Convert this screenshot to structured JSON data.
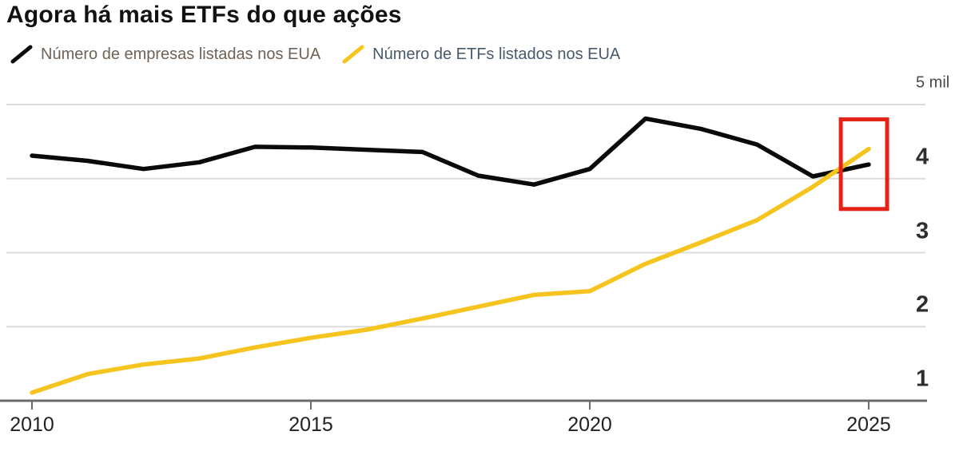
{
  "title": "Agora há mais ETFs do que ações",
  "legend": {
    "items": [
      {
        "label": "Número de empresas listadas nos EUA",
        "line_color": "#0a0a0a",
        "text_color": "#6f6257"
      },
      {
        "label": "Número de ETFs listados nos EUA",
        "line_color": "#f5c41e",
        "text_color": "#49596b"
      }
    ]
  },
  "y_axis": {
    "unit_label": "5 mil",
    "ticks": [
      {
        "label": "5 mil",
        "value": 5,
        "style": "unit"
      },
      {
        "label": "4",
        "value": 4,
        "style": "number"
      },
      {
        "label": "3",
        "value": 3,
        "style": "number"
      },
      {
        "label": "2",
        "value": 2,
        "style": "number"
      },
      {
        "label": "1",
        "value": 1,
        "style": "number"
      }
    ]
  },
  "x_axis": {
    "ticks": [
      {
        "label": "2010",
        "value": 2010
      },
      {
        "label": "2015",
        "value": 2015
      },
      {
        "label": "2020",
        "value": 2020
      },
      {
        "label": "2025",
        "value": 2025
      }
    ]
  },
  "chart_data": {
    "type": "line",
    "title": "Agora há mais ETFs do que ações",
    "xlabel": "",
    "ylabel": "mil",
    "xlim": [
      2010,
      2025
    ],
    "ylim": [
      1,
      5
    ],
    "grid": true,
    "legend_position": "top-left",
    "x": [
      2010,
      2011,
      2012,
      2013,
      2014,
      2015,
      2016,
      2017,
      2018,
      2019,
      2020,
      2021,
      2022,
      2023,
      2024,
      2025
    ],
    "series": [
      {
        "name": "Número de empresas listadas nos EUA",
        "color": "#0a0a0a",
        "unit": "mil",
        "values": [
          4.31,
          4.24,
          4.13,
          4.22,
          4.43,
          4.42,
          4.39,
          4.36,
          4.04,
          3.92,
          4.13,
          4.81,
          4.67,
          4.46,
          4.03,
          4.19
        ]
      },
      {
        "name": "Número de ETFs listados nos EUA",
        "color": "#f5c41e",
        "unit": "mil",
        "values": [
          1.11,
          1.36,
          1.49,
          1.57,
          1.72,
          1.85,
          1.96,
          2.11,
          2.27,
          2.43,
          2.48,
          2.85,
          3.14,
          3.44,
          3.89,
          4.4
        ]
      }
    ],
    "annotations": [
      {
        "type": "rect",
        "x_range": [
          2024.5,
          2025.33
        ],
        "y_range": [
          3.59,
          4.8
        ],
        "color": "#e42217"
      }
    ]
  },
  "colors": {
    "background": "#ffffff",
    "gridline": "#dcdcdc",
    "axis_line": "#6b6b6b",
    "highlight": "#e42217",
    "stocks_line": "#0a0a0a",
    "etf_line": "#f5c41e"
  }
}
